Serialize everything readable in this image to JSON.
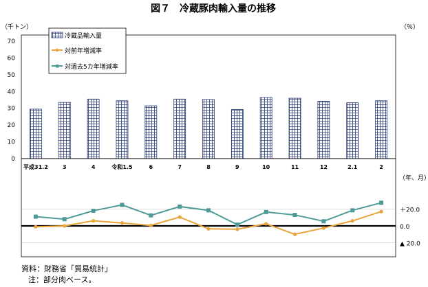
{
  "chart_data": {
    "type": "bar+line",
    "title": "図７　冷蔵豚肉輸入量の推移",
    "left_unit": "（千トン）",
    "right_unit": "（％）",
    "x_unit": "（年、月）",
    "categories": [
      "平成31.2",
      "3",
      "4",
      "令和1.5",
      "6",
      "7",
      "8",
      "9",
      "10",
      "11",
      "12",
      "2.1",
      "2"
    ],
    "bars": {
      "name": "冷蔵品輸入量",
      "values": [
        29.5,
        33.5,
        35.5,
        34.5,
        31.5,
        35.5,
        35.3,
        29.3,
        36.5,
        36.0,
        34.2,
        33.3,
        34.5
      ],
      "yticks": [
        0,
        10,
        20,
        30,
        40,
        50,
        60,
        70
      ],
      "ylim": [
        0,
        70
      ]
    },
    "lines": [
      {
        "name": "対前年増減率",
        "color": "#E8A33A",
        "values": [
          -1.0,
          0.0,
          6.0,
          3.5,
          0.5,
          10.5,
          -3.5,
          -4.0,
          2.5,
          -10.0,
          -2.5,
          6.0,
          17.0
        ]
      },
      {
        "name": "対過去5カ年増減率",
        "color": "#4E9A97",
        "values": [
          11.0,
          8.0,
          18.0,
          25.0,
          12.5,
          23.0,
          18.5,
          1.5,
          16.5,
          13.0,
          5.5,
          18.5,
          27.5
        ]
      }
    ],
    "right_ticks": [
      {
        "value": 20,
        "label": "＋20.0"
      },
      {
        "value": 0,
        "label": "0.0"
      },
      {
        "value": -20,
        "label": "▲ 20.0"
      }
    ],
    "right_ylim": [
      -42,
      62
    ]
  },
  "notes": {
    "source": "資料：財務省「貿易統計」",
    "note": "注：部分肉ベース。"
  }
}
